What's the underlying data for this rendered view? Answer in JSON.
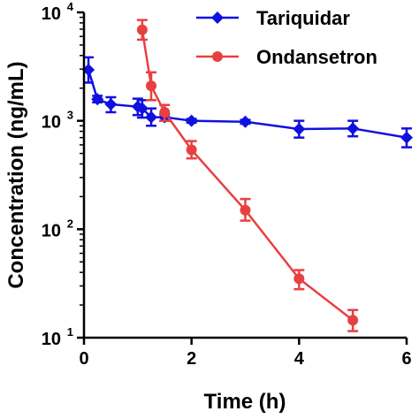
{
  "chart_data": {
    "type": "line",
    "title": "",
    "xlabel": "Time (h)",
    "ylabel": "Concentration (ng/mL)",
    "xlim": [
      0,
      6
    ],
    "ylim": [
      10,
      10000
    ],
    "yscale": "log",
    "x_ticks": [
      {
        "value": 0,
        "label": "0"
      },
      {
        "value": 2,
        "label": "2"
      },
      {
        "value": 4,
        "label": "4"
      },
      {
        "value": 6,
        "label": "6"
      }
    ],
    "y_ticks": [
      {
        "value": 10,
        "base": "10",
        "exp": "1"
      },
      {
        "value": 100,
        "base": "10",
        "exp": "2"
      },
      {
        "value": 1000,
        "base": "10",
        "exp": "3"
      },
      {
        "value": 10000,
        "base": "10",
        "exp": "4"
      }
    ],
    "grid": false,
    "legend_position": "top-right",
    "series": [
      {
        "name": "Tariquidar",
        "color": "#1010e0",
        "marker": "diamond",
        "x": [
          0.083,
          0.25,
          0.5,
          1.0,
          1.083,
          1.25,
          1.5,
          2.0,
          3.0,
          4.0,
          5.0,
          6.0
        ],
        "y": [
          2950,
          1580,
          1420,
          1350,
          1300,
          1080,
          1080,
          1000,
          980,
          840,
          850,
          700
        ],
        "y_low": [
          2250,
          1480,
          1200,
          1130,
          1070,
          900,
          1000,
          960,
          940,
          700,
          720,
          570
        ],
        "y_high": [
          3850,
          1700,
          1650,
          1600,
          1550,
          1300,
          1150,
          1040,
          1020,
          1000,
          1000,
          850
        ]
      },
      {
        "name": "Ondansetron",
        "color": "#e84040",
        "marker": "circle",
        "x": [
          1.083,
          1.25,
          1.5,
          2.0,
          3.0,
          4.0,
          5.0
        ],
        "y": [
          6900,
          2100,
          1200,
          540,
          150,
          35,
          14.5
        ],
        "y_low": [
          5600,
          1550,
          1000,
          450,
          120,
          28,
          11.5
        ],
        "y_high": [
          8500,
          2800,
          1400,
          650,
          190,
          42,
          18
        ]
      }
    ]
  }
}
